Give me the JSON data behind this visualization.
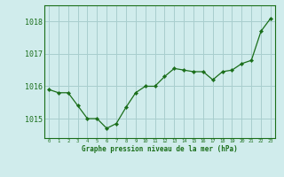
{
  "x": [
    0,
    1,
    2,
    3,
    4,
    5,
    6,
    7,
    8,
    9,
    10,
    11,
    12,
    13,
    14,
    15,
    16,
    17,
    18,
    19,
    20,
    21,
    22,
    23
  ],
  "y": [
    1015.9,
    1015.8,
    1015.8,
    1015.4,
    1015.0,
    1015.0,
    1014.7,
    1014.85,
    1015.35,
    1015.8,
    1016.0,
    1016.0,
    1016.3,
    1016.55,
    1016.5,
    1016.45,
    1016.45,
    1016.2,
    1016.45,
    1016.5,
    1016.7,
    1016.8,
    1017.7,
    1018.1
  ],
  "line_color": "#1a6e1a",
  "marker_color": "#1a6e1a",
  "bg_color": "#d0ecec",
  "grid_color": "#a8cece",
  "axis_color": "#1a6e1a",
  "tick_label_color": "#1a6e1a",
  "xlabel": "Graphe pression niveau de la mer (hPa)",
  "xlabel_color": "#1a6e1a",
  "ylim": [
    1014.4,
    1018.5
  ],
  "yticks": [
    1015,
    1016,
    1017,
    1018
  ],
  "xlim": [
    -0.5,
    23.5
  ],
  "xticks": [
    0,
    1,
    2,
    3,
    4,
    5,
    6,
    7,
    8,
    9,
    10,
    11,
    12,
    13,
    14,
    15,
    16,
    17,
    18,
    19,
    20,
    21,
    22,
    23
  ]
}
